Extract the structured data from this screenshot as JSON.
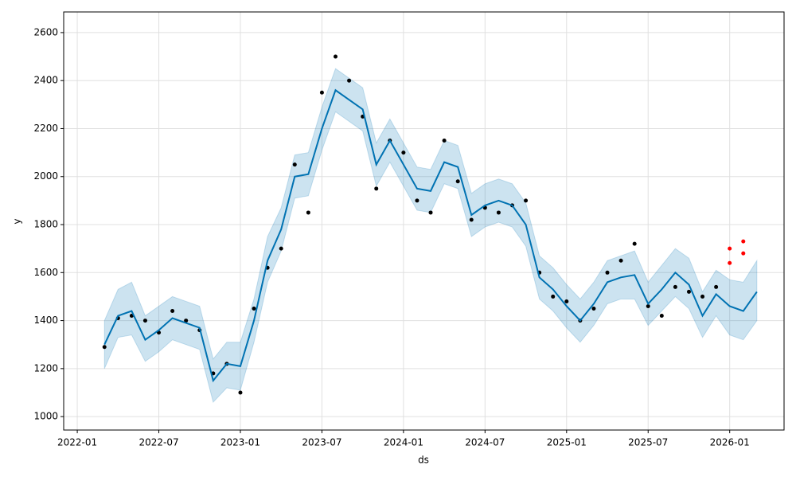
{
  "chart_data": {
    "type": "forecast",
    "xlabel": "ds",
    "ylabel": "y",
    "grid": true,
    "xlim": [
      "2021-12",
      "2026-05"
    ],
    "ylim": [
      944,
      2686
    ],
    "xticks": [
      "2022-01",
      "2022-07",
      "2023-01",
      "2023-07",
      "2024-01",
      "2024-07",
      "2025-01",
      "2025-07",
      "2026-01"
    ],
    "yticks": [
      1000,
      1200,
      1400,
      1600,
      1800,
      2000,
      2200,
      2400,
      2600
    ],
    "x": [
      "2022-03",
      "2022-04",
      "2022-05",
      "2022-06",
      "2022-07",
      "2022-08",
      "2022-09",
      "2022-10",
      "2022-11",
      "2022-12",
      "2023-01",
      "2023-02",
      "2023-03",
      "2023-04",
      "2023-05",
      "2023-06",
      "2023-07",
      "2023-08",
      "2023-09",
      "2023-10",
      "2023-11",
      "2023-12",
      "2024-01",
      "2024-02",
      "2024-03",
      "2024-04",
      "2024-05",
      "2024-06",
      "2024-07",
      "2024-08",
      "2024-09",
      "2024-10",
      "2024-11",
      "2024-12",
      "2025-01",
      "2025-02",
      "2025-03",
      "2025-04",
      "2025-05",
      "2025-06",
      "2025-07",
      "2025-08",
      "2025-09",
      "2025-10",
      "2025-11",
      "2025-12",
      "2026-01",
      "2026-02",
      "2026-03"
    ],
    "series": [
      {
        "color": "#0072B2",
        "values": [
          1300,
          1420,
          1440,
          1320,
          1360,
          1410,
          1390,
          1370,
          1150,
          1220,
          1210,
          1400,
          1650,
          1780,
          2000,
          2010,
          2200,
          2360,
          2320,
          2280,
          2050,
          2150,
          2050,
          1950,
          1940,
          2060,
          2040,
          1840,
          1880,
          1900,
          1880,
          1800,
          1580,
          1530,
          1460,
          1400,
          1470,
          1560,
          1580,
          1590,
          1470,
          1530,
          1600,
          1550,
          1420,
          1510,
          1460,
          1440,
          1520
        ]
      }
    ],
    "band": {
      "color": "#0072B2",
      "lower": [
        1200,
        1330,
        1340,
        1230,
        1270,
        1320,
        1300,
        1280,
        1060,
        1120,
        1110,
        1310,
        1560,
        1690,
        1910,
        1920,
        2110,
        2270,
        2230,
        2190,
        1960,
        2060,
        1960,
        1860,
        1850,
        1970,
        1950,
        1750,
        1790,
        1810,
        1790,
        1710,
        1490,
        1440,
        1370,
        1310,
        1380,
        1470,
        1490,
        1490,
        1380,
        1440,
        1500,
        1450,
        1330,
        1420,
        1340,
        1320,
        1400
      ],
      "upper": [
        1400,
        1530,
        1560,
        1420,
        1460,
        1500,
        1480,
        1460,
        1240,
        1310,
        1310,
        1490,
        1750,
        1870,
        2090,
        2100,
        2290,
        2450,
        2410,
        2370,
        2140,
        2240,
        2140,
        2040,
        2030,
        2150,
        2130,
        1930,
        1970,
        1990,
        1970,
        1890,
        1670,
        1620,
        1550,
        1490,
        1560,
        1650,
        1670,
        1690,
        1560,
        1630,
        1700,
        1660,
        1520,
        1610,
        1570,
        1560,
        1650
      ]
    },
    "points": [
      {
        "color": "#000000",
        "x": [
          "2022-03",
          "2022-04",
          "2022-05",
          "2022-06",
          "2022-07",
          "2022-08",
          "2022-09",
          "2022-10",
          "2022-11",
          "2022-12",
          "2023-01",
          "2023-02",
          "2023-03",
          "2023-04",
          "2023-05",
          "2023-06",
          "2023-07",
          "2023-08",
          "2023-09",
          "2023-10",
          "2023-11",
          "2023-12",
          "2024-01",
          "2024-02",
          "2024-03",
          "2024-04",
          "2024-05",
          "2024-06",
          "2024-07",
          "2024-08",
          "2024-09",
          "2024-10",
          "2024-11",
          "2024-12",
          "2025-01",
          "2025-02",
          "2025-03",
          "2025-04",
          "2025-05",
          "2025-06",
          "2025-07",
          "2025-08",
          "2025-09",
          "2025-10",
          "2025-11",
          "2025-12"
        ],
        "values": [
          1290,
          1410,
          1420,
          1400,
          1350,
          1440,
          1400,
          1360,
          1180,
          1220,
          1100,
          1450,
          1620,
          1700,
          2050,
          1850,
          2350,
          2500,
          2400,
          2250,
          1950,
          2150,
          2100,
          1900,
          1850,
          2150,
          1980,
          1820,
          1870,
          1850,
          1880,
          1900,
          1600,
          1500,
          1480,
          1400,
          1450,
          1600,
          1650,
          1720,
          1460,
          1420,
          1540,
          1520,
          1500,
          1540
        ]
      },
      {
        "color": "#ff0000",
        "x": [
          "2026-01",
          "2026-01",
          "2026-02",
          "2026-02"
        ],
        "values": [
          1640,
          1700,
          1730,
          1680
        ]
      }
    ]
  }
}
